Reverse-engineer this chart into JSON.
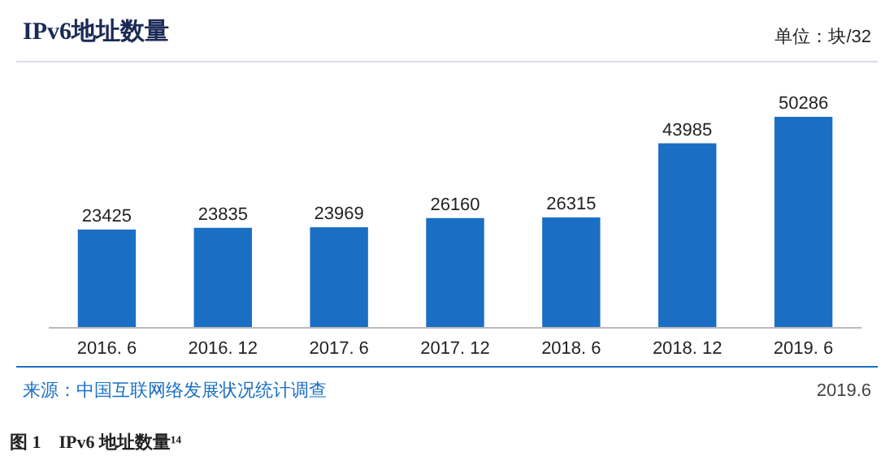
{
  "chart_data": {
    "type": "bar",
    "title": "IPv6地址数量",
    "categories": [
      "2016. 6",
      "2016. 12",
      "2017. 6",
      "2017. 12",
      "2018. 6",
      "2018. 12",
      "2019. 6"
    ],
    "values": [
      23425,
      23835,
      23969,
      26160,
      26315,
      43985,
      50286
    ],
    "color": "#1a6fc4",
    "data_labels": true,
    "annotations": [
      "单位：块/32",
      "来源：中国互联网络发展状况统计调查",
      "2019.6",
      "图 1　IPv6 地址数量¹⁴"
    ]
  }
}
